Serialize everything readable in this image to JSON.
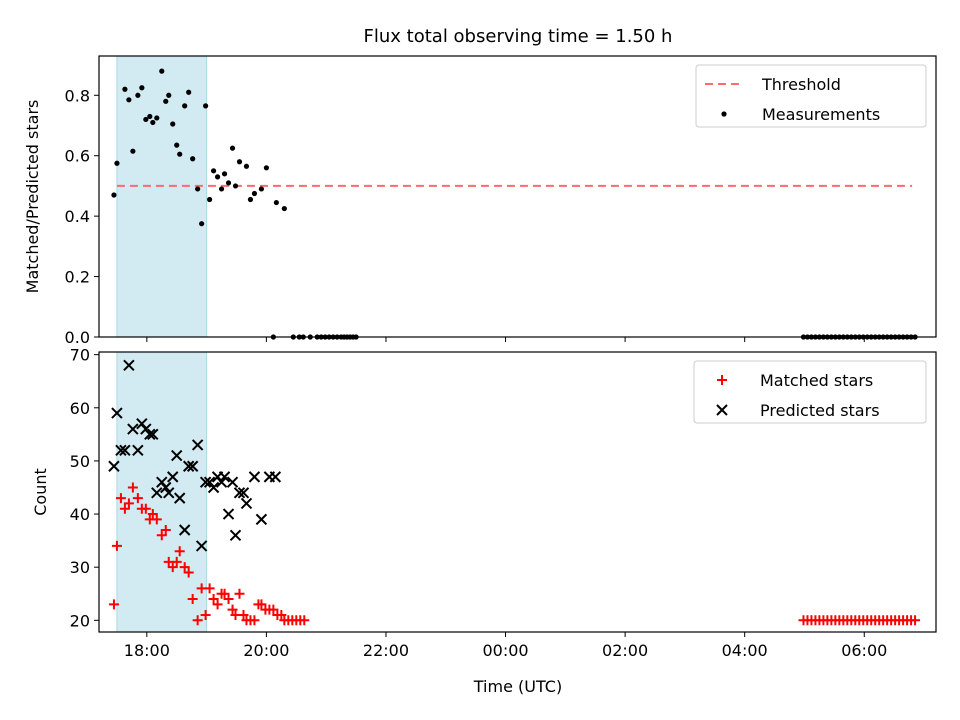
{
  "title": "Flux total observing time = 1.50 h",
  "xlabel": "Time (UTC)",
  "chart_data": [
    {
      "type": "scatter",
      "ylabel": "Matched/Predicted stars",
      "xlim": [
        "17:12",
        "07:12"
      ],
      "ylim": [
        0,
        0.93
      ],
      "x_ticks": [
        "18:00",
        "20:00",
        "22:00",
        "00:00",
        "02:00",
        "04:00",
        "06:00"
      ],
      "y_ticks": [
        "0.0",
        "0.2",
        "0.4",
        "0.6",
        "0.8"
      ],
      "highlight_span": {
        "start": "17:30",
        "end": "19:00",
        "color": "#add8e6"
      },
      "threshold": {
        "name": "Threshold",
        "value": 0.5,
        "start": "17:30",
        "end": "06:48",
        "color": "#ff6b6b",
        "style": "dashed"
      },
      "legend": [
        "Threshold",
        "Measurements"
      ],
      "legend_position": "upper right",
      "series": [
        {
          "name": "Measurements",
          "marker": "dot",
          "color": "#000000",
          "points": [
            [
              "17:27",
              0.47
            ],
            [
              "17:30",
              0.575
            ],
            [
              "17:38",
              0.82
            ],
            [
              "17:42",
              0.785
            ],
            [
              "17:46",
              0.615
            ],
            [
              "17:51",
              0.8
            ],
            [
              "17:55",
              0.825
            ],
            [
              "17:59",
              0.72
            ],
            [
              "18:03",
              0.73
            ],
            [
              "18:06",
              0.71
            ],
            [
              "18:10",
              0.725
            ],
            [
              "18:15",
              0.88
            ],
            [
              "18:19",
              0.78
            ],
            [
              "18:22",
              0.8
            ],
            [
              "18:26",
              0.705
            ],
            [
              "18:30",
              0.635
            ],
            [
              "18:33",
              0.605
            ],
            [
              "18:38",
              0.765
            ],
            [
              "18:42",
              0.81
            ],
            [
              "18:46",
              0.59
            ],
            [
              "18:51",
              0.49
            ],
            [
              "18:55",
              0.375
            ],
            [
              "18:59",
              0.765
            ],
            [
              "19:03",
              0.455
            ],
            [
              "19:07",
              0.55
            ],
            [
              "19:11",
              0.53
            ],
            [
              "19:15",
              0.49
            ],
            [
              "19:18",
              0.54
            ],
            [
              "19:22",
              0.51
            ],
            [
              "19:26",
              0.625
            ],
            [
              "19:29",
              0.5
            ],
            [
              "19:33",
              0.58
            ],
            [
              "19:40",
              0.565
            ],
            [
              "19:44",
              0.455
            ],
            [
              "19:48",
              0.475
            ],
            [
              "19:55",
              0.49
            ],
            [
              "20:00",
              0.56
            ],
            [
              "20:10",
              0.445
            ],
            [
              "20:18",
              0.425
            ],
            [
              "20:07",
              0.0
            ],
            [
              "20:27",
              0.0
            ],
            [
              "20:33",
              0.0
            ],
            [
              "20:37",
              0.0
            ],
            [
              "20:44",
              0.0
            ],
            [
              "20:51",
              0.0
            ],
            [
              "20:55",
              0.0
            ],
            [
              "20:59",
              0.0
            ],
            [
              "21:03",
              0.0
            ],
            [
              "21:07",
              0.0
            ],
            [
              "21:11",
              0.0
            ],
            [
              "21:15",
              0.0
            ],
            [
              "21:18",
              0.0
            ],
            [
              "21:21",
              0.0
            ],
            [
              "21:24",
              0.0
            ],
            [
              "21:27",
              0.0
            ],
            [
              "21:30",
              0.0
            ],
            [
              "04:59",
              0.0
            ],
            [
              "05:03",
              0.0
            ],
            [
              "05:07",
              0.0
            ],
            [
              "05:11",
              0.0
            ],
            [
              "05:15",
              0.0
            ],
            [
              "05:19",
              0.0
            ],
            [
              "05:23",
              0.0
            ],
            [
              "05:27",
              0.0
            ],
            [
              "05:31",
              0.0
            ],
            [
              "05:35",
              0.0
            ],
            [
              "05:39",
              0.0
            ],
            [
              "05:43",
              0.0
            ],
            [
              "05:47",
              0.0
            ],
            [
              "05:51",
              0.0
            ],
            [
              "05:55",
              0.0
            ],
            [
              "05:59",
              0.0
            ],
            [
              "06:03",
              0.0
            ],
            [
              "06:07",
              0.0
            ],
            [
              "06:11",
              0.0
            ],
            [
              "06:15",
              0.0
            ],
            [
              "06:19",
              0.0
            ],
            [
              "06:23",
              0.0
            ],
            [
              "06:27",
              0.0
            ],
            [
              "06:31",
              0.0
            ],
            [
              "06:35",
              0.0
            ],
            [
              "06:39",
              0.0
            ],
            [
              "06:43",
              0.0
            ],
            [
              "06:47",
              0.0
            ],
            [
              "06:51",
              0.0
            ]
          ]
        }
      ]
    },
    {
      "type": "scatter",
      "ylabel": "Count",
      "xlim": [
        "17:12",
        "07:12"
      ],
      "ylim": [
        17.8,
        70.5
      ],
      "x_ticks": [
        "18:00",
        "20:00",
        "22:00",
        "00:00",
        "02:00",
        "04:00",
        "06:00"
      ],
      "y_ticks": [
        "20",
        "30",
        "40",
        "50",
        "60",
        "70"
      ],
      "highlight_span": {
        "start": "17:30",
        "end": "19:00",
        "color": "#add8e6"
      },
      "legend": [
        "Matched stars",
        "Predicted stars"
      ],
      "legend_position": "upper right",
      "series": [
        {
          "name": "Matched stars",
          "marker": "plus",
          "color": "#ff0000",
          "points": [
            [
              "17:27",
              23
            ],
            [
              "17:30",
              34
            ],
            [
              "17:34",
              43
            ],
            [
              "17:38",
              41
            ],
            [
              "17:42",
              42
            ],
            [
              "17:46",
              45
            ],
            [
              "17:51",
              43
            ],
            [
              "17:55",
              41
            ],
            [
              "17:59",
              41
            ],
            [
              "18:03",
              39
            ],
            [
              "18:06",
              40
            ],
            [
              "18:10",
              39
            ],
            [
              "18:15",
              36
            ],
            [
              "18:19",
              37
            ],
            [
              "18:22",
              31
            ],
            [
              "18:26",
              30
            ],
            [
              "18:30",
              31
            ],
            [
              "18:33",
              33
            ],
            [
              "18:38",
              30
            ],
            [
              "18:42",
              29
            ],
            [
              "18:46",
              24
            ],
            [
              "18:51",
              20
            ],
            [
              "18:55",
              26
            ],
            [
              "18:59",
              21
            ],
            [
              "19:03",
              26
            ],
            [
              "19:07",
              24
            ],
            [
              "19:11",
              23
            ],
            [
              "19:15",
              25
            ],
            [
              "19:18",
              25
            ],
            [
              "19:22",
              24
            ],
            [
              "19:26",
              22
            ],
            [
              "19:29",
              21
            ],
            [
              "19:33",
              25
            ],
            [
              "19:37",
              21
            ],
            [
              "19:40",
              20
            ],
            [
              "19:44",
              20
            ],
            [
              "19:48",
              20
            ],
            [
              "19:52",
              23
            ],
            [
              "19:55",
              23
            ],
            [
              "19:59",
              22
            ],
            [
              "20:03",
              22
            ],
            [
              "20:07",
              22
            ],
            [
              "20:11",
              21
            ],
            [
              "20:15",
              21
            ],
            [
              "20:18",
              20
            ],
            [
              "20:22",
              20
            ],
            [
              "20:26",
              20
            ],
            [
              "20:30",
              20
            ],
            [
              "20:34",
              20
            ],
            [
              "20:38",
              20
            ],
            [
              "04:59",
              20
            ],
            [
              "05:03",
              20
            ],
            [
              "05:07",
              20
            ],
            [
              "05:11",
              20
            ],
            [
              "05:15",
              20
            ],
            [
              "05:19",
              20
            ],
            [
              "05:23",
              20
            ],
            [
              "05:27",
              20
            ],
            [
              "05:31",
              20
            ],
            [
              "05:35",
              20
            ],
            [
              "05:39",
              20
            ],
            [
              "05:43",
              20
            ],
            [
              "05:47",
              20
            ],
            [
              "05:51",
              20
            ],
            [
              "05:55",
              20
            ],
            [
              "05:59",
              20
            ],
            [
              "06:03",
              20
            ],
            [
              "06:07",
              20
            ],
            [
              "06:11",
              20
            ],
            [
              "06:15",
              20
            ],
            [
              "06:19",
              20
            ],
            [
              "06:23",
              20
            ],
            [
              "06:27",
              20
            ],
            [
              "06:31",
              20
            ],
            [
              "06:35",
              20
            ],
            [
              "06:39",
              20
            ],
            [
              "06:43",
              20
            ],
            [
              "06:47",
              20
            ],
            [
              "06:51",
              20
            ]
          ]
        },
        {
          "name": "Predicted stars",
          "marker": "x",
          "color": "#000000",
          "points": [
            [
              "17:27",
              49
            ],
            [
              "17:30",
              59
            ],
            [
              "17:34",
              52
            ],
            [
              "17:38",
              52
            ],
            [
              "17:42",
              68
            ],
            [
              "17:46",
              56
            ],
            [
              "17:51",
              52
            ],
            [
              "17:55",
              57
            ],
            [
              "17:59",
              56
            ],
            [
              "18:03",
              55
            ],
            [
              "18:06",
              55
            ],
            [
              "18:10",
              44
            ],
            [
              "18:15",
              46
            ],
            [
              "18:19",
              45
            ],
            [
              "18:22",
              44
            ],
            [
              "18:26",
              47
            ],
            [
              "18:30",
              51
            ],
            [
              "18:33",
              43
            ],
            [
              "18:38",
              37
            ],
            [
              "18:42",
              49
            ],
            [
              "18:46",
              49
            ],
            [
              "18:51",
              53
            ],
            [
              "18:55",
              34
            ],
            [
              "18:59",
              46
            ],
            [
              "19:03",
              46
            ],
            [
              "19:07",
              45
            ],
            [
              "19:11",
              47
            ],
            [
              "19:15",
              46
            ],
            [
              "19:18",
              47
            ],
            [
              "19:22",
              40
            ],
            [
              "19:26",
              46
            ],
            [
              "19:29",
              36
            ],
            [
              "19:33",
              44
            ],
            [
              "19:37",
              44
            ],
            [
              "19:40",
              42
            ],
            [
              "19:48",
              47
            ],
            [
              "19:55",
              39
            ],
            [
              "20:03",
              47
            ],
            [
              "20:09",
              47
            ]
          ]
        }
      ]
    }
  ]
}
